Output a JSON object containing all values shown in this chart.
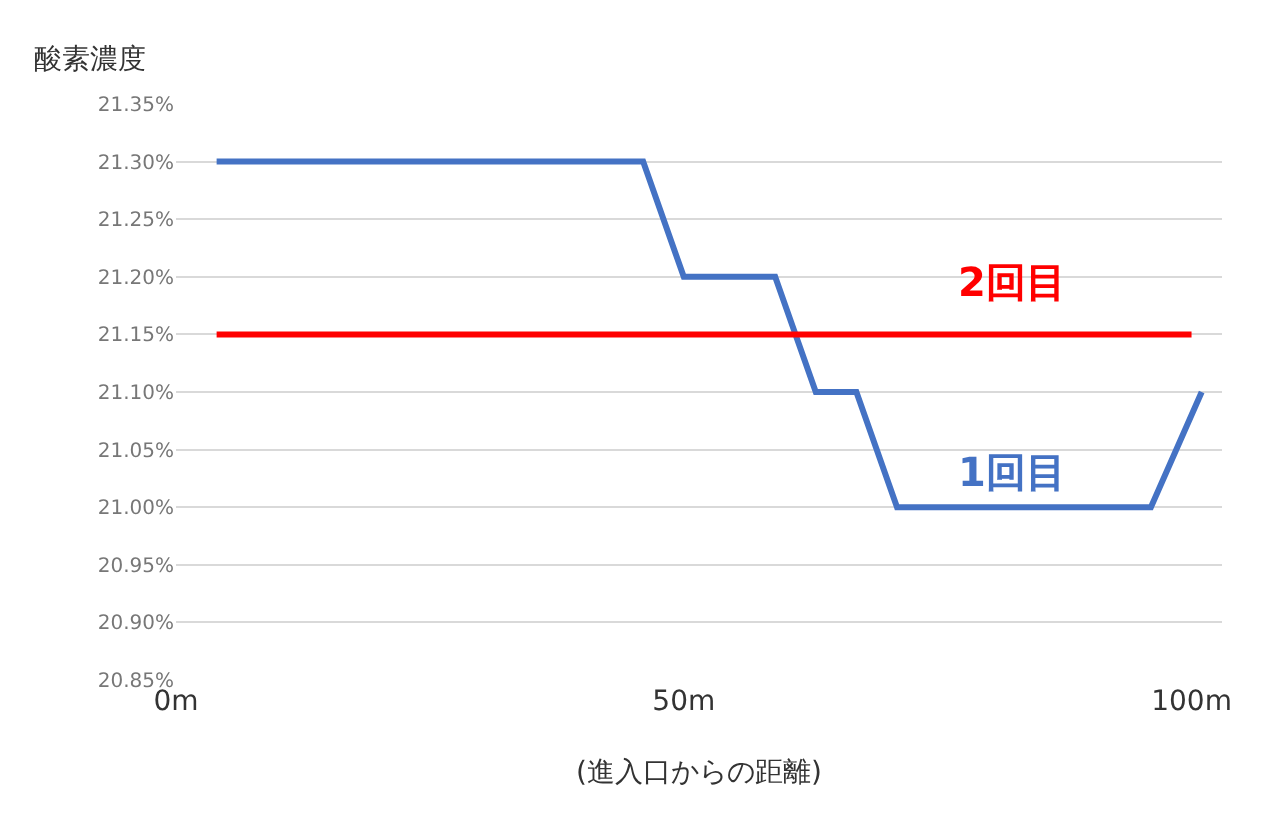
{
  "chart_data": {
    "type": "line",
    "ylabel": "酸素濃度",
    "xlabel": "(進入口からの距離)",
    "series": [
      {
        "name": "1回目",
        "color": "#4472c4",
        "x": [
          4,
          46,
          50,
          59,
          63,
          67,
          71,
          96,
          101
        ],
        "values": [
          21.3,
          21.3,
          21.2,
          21.2,
          21.1,
          21.1,
          21.0,
          21.0,
          21.1
        ]
      },
      {
        "name": "2回目",
        "color": "#ff0000",
        "x": [
          4,
          100
        ],
        "values": [
          21.15,
          21.15
        ]
      }
    ],
    "xlim": [
      0,
      103
    ],
    "xticks": [
      {
        "value": 0,
        "label": "0m"
      },
      {
        "value": 50,
        "label": "50m"
      },
      {
        "value": 100,
        "label": "100m"
      }
    ],
    "ylim": [
      20.85,
      21.35
    ],
    "yticks": [
      {
        "value": 20.85,
        "label": "20.85%"
      },
      {
        "value": 20.9,
        "label": "20.90%"
      },
      {
        "value": 20.95,
        "label": "20.95%"
      },
      {
        "value": 21.0,
        "label": "21.00%"
      },
      {
        "value": 21.05,
        "label": "21.05%"
      },
      {
        "value": 21.1,
        "label": "21.10%"
      },
      {
        "value": 21.15,
        "label": "21.15%"
      },
      {
        "value": 21.2,
        "label": "21.20%"
      },
      {
        "value": 21.25,
        "label": "21.25%"
      },
      {
        "value": 21.3,
        "label": "21.30%"
      },
      {
        "value": 21.35,
        "label": "21.35%"
      }
    ],
    "grid": "y",
    "legend": false,
    "marker": "none",
    "line_style": "solid"
  }
}
